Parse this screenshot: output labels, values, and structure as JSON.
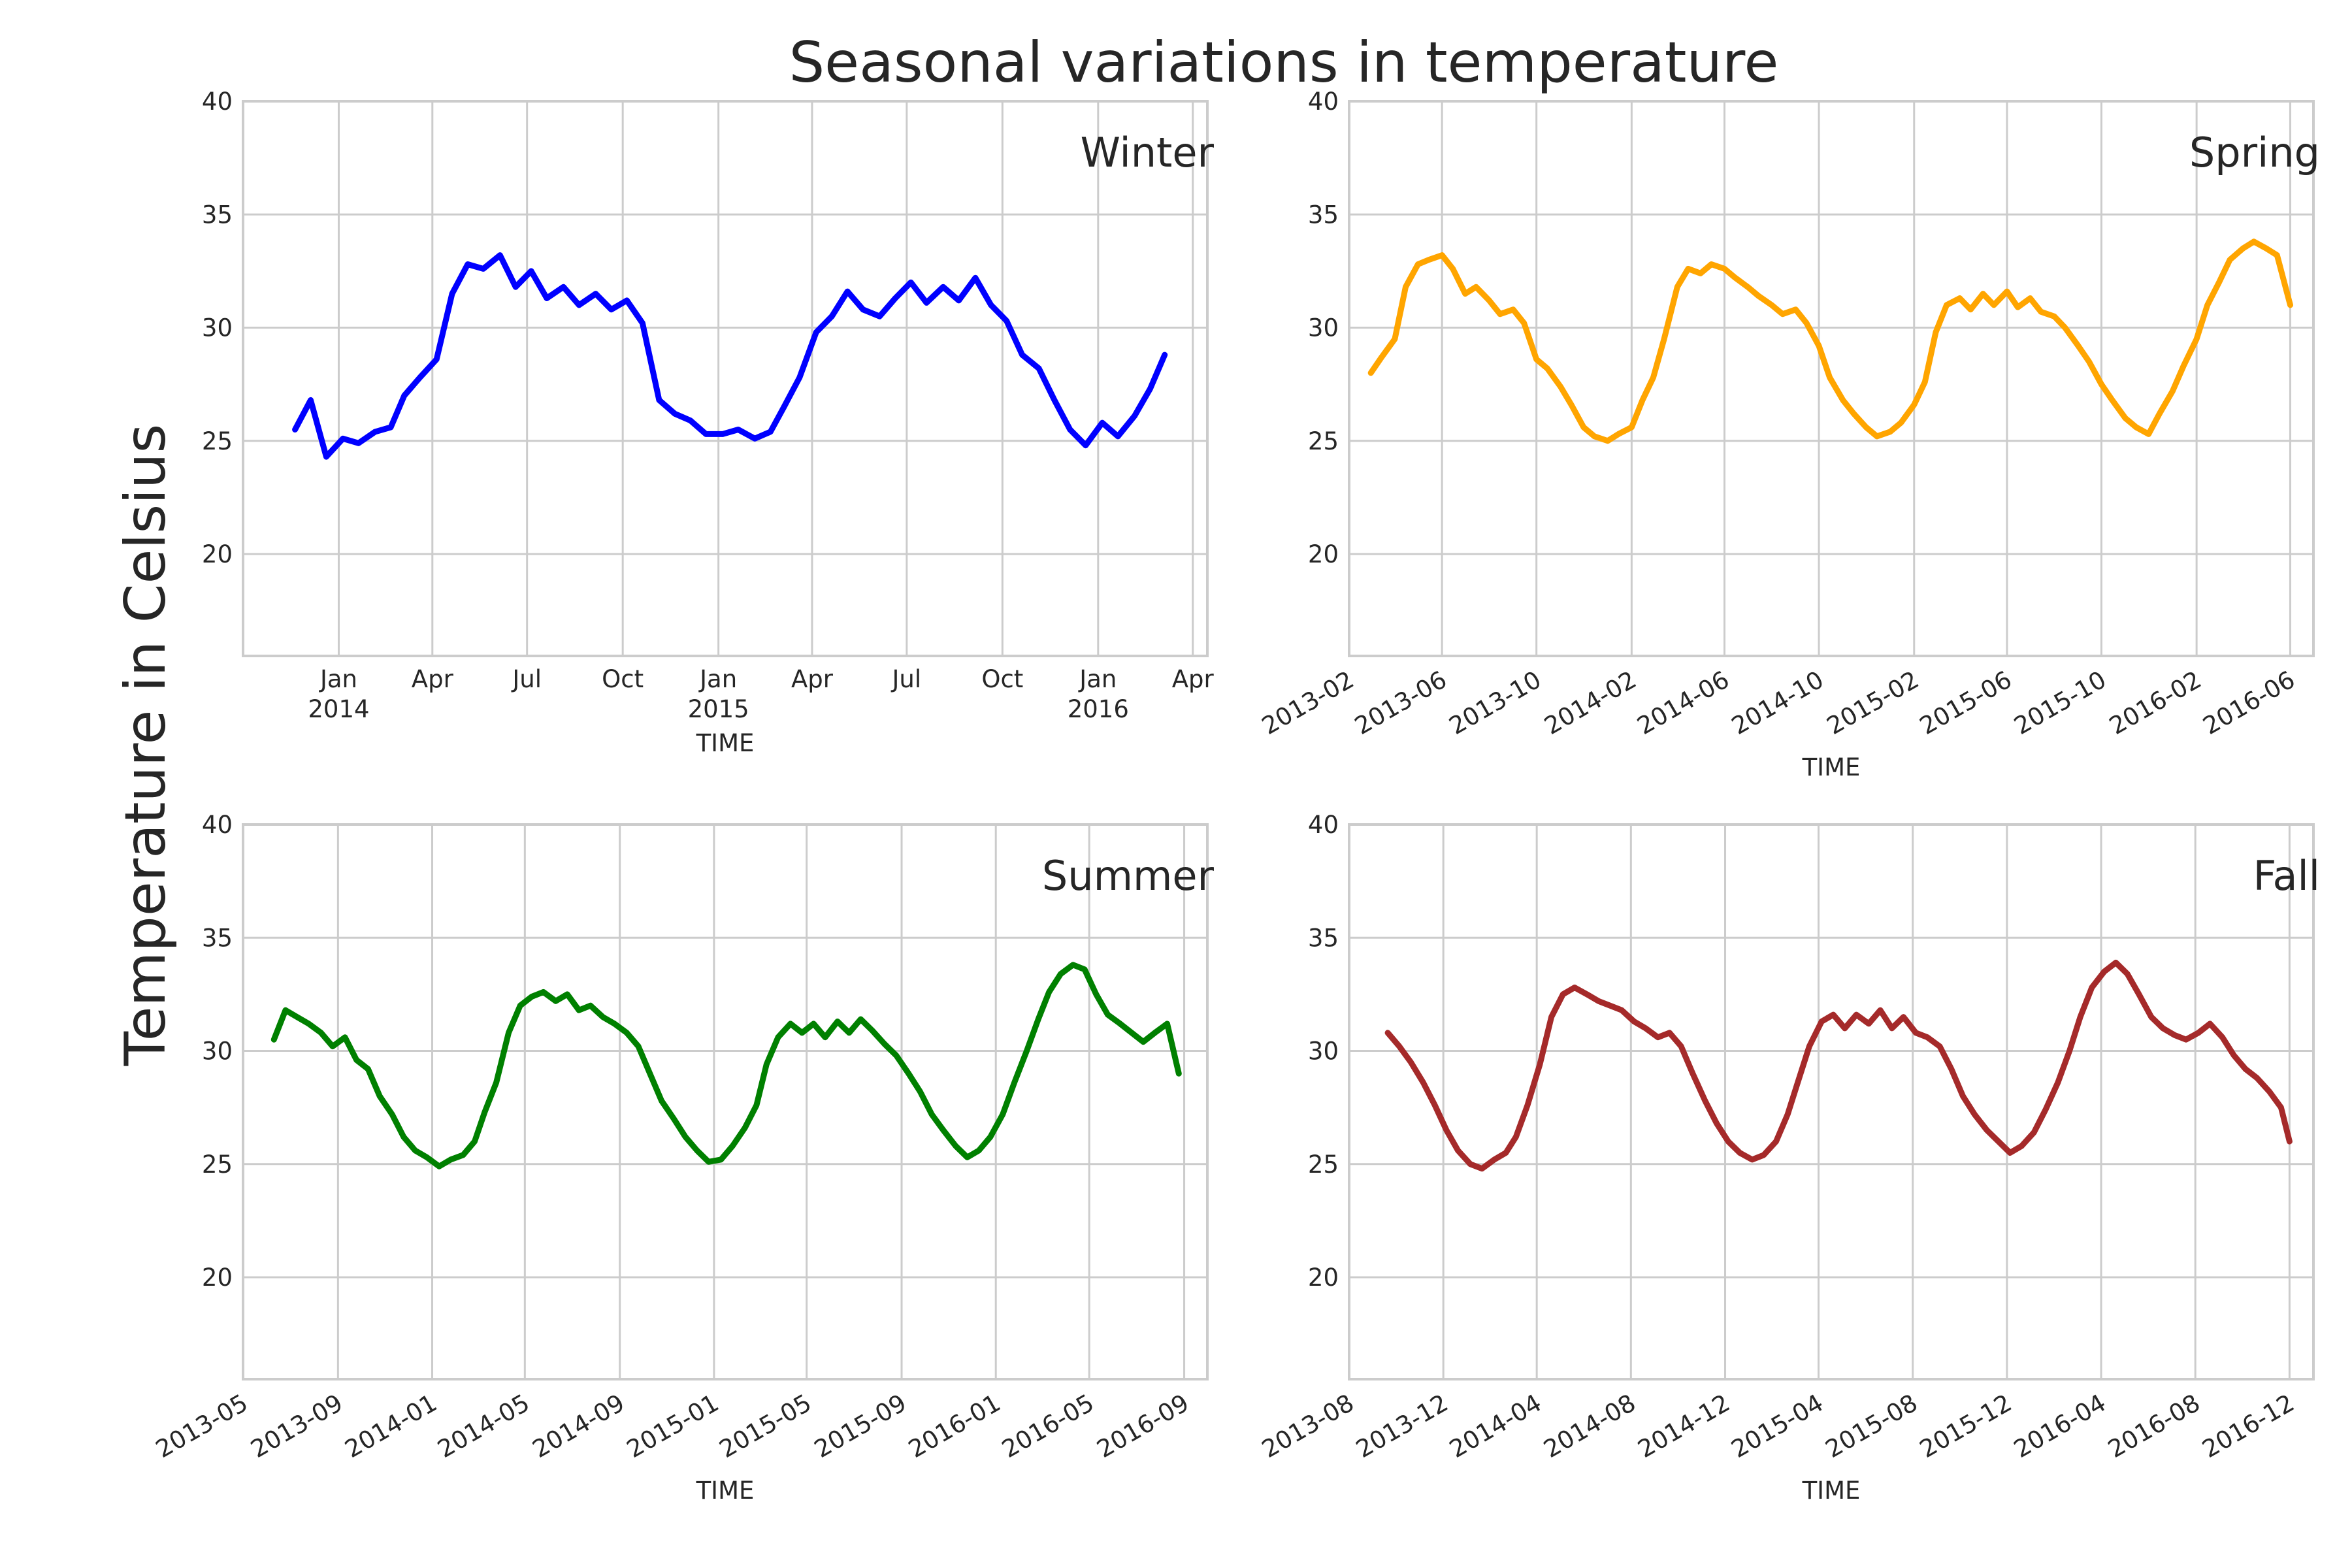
{
  "figure": {
    "title": "Seasonal variations in temperature",
    "ylabel": "Temperature in Celsius"
  },
  "chart_data": [
    {
      "type": "line",
      "panel": "top-left",
      "annotation": "Winter",
      "xlabel": "TIME",
      "ylabel": "",
      "ylim": [
        15.5,
        40
      ],
      "xlim": [
        "2013-10-01",
        "2016-04-15"
      ],
      "yticks": [
        20,
        25,
        30,
        35,
        40
      ],
      "xticks": [
        {
          "date": "2014-01-01",
          "label": "Jan",
          "label2": "2014"
        },
        {
          "date": "2014-04-01",
          "label": "Apr",
          "label2": ""
        },
        {
          "date": "2014-07-01",
          "label": "Jul",
          "label2": ""
        },
        {
          "date": "2014-10-01",
          "label": "Oct",
          "label2": ""
        },
        {
          "date": "2015-01-01",
          "label": "Jan",
          "label2": "2015"
        },
        {
          "date": "2015-04-01",
          "label": "Apr",
          "label2": ""
        },
        {
          "date": "2015-07-01",
          "label": "Jul",
          "label2": ""
        },
        {
          "date": "2015-10-01",
          "label": "Oct",
          "label2": ""
        },
        {
          "date": "2016-01-01",
          "label": "Jan",
          "label2": "2016"
        },
        {
          "date": "2016-04-01",
          "label": "Apr",
          "label2": ""
        }
      ],
      "rotate_ticks": false,
      "grid": true,
      "color": "#0000ff",
      "series": [
        {
          "x": [
            "2013-11-20",
            "2013-12-05",
            "2013-12-20",
            "2014-01-05",
            "2014-01-20",
            "2014-02-05",
            "2014-02-20",
            "2014-03-05",
            "2014-03-20",
            "2014-04-05",
            "2014-04-20",
            "2014-05-05",
            "2014-05-20",
            "2014-06-05",
            "2014-06-20",
            "2014-07-05",
            "2014-07-20",
            "2014-08-05",
            "2014-08-20",
            "2014-09-05",
            "2014-09-20",
            "2014-10-05",
            "2014-10-20",
            "2014-11-05",
            "2014-11-20",
            "2014-12-05",
            "2014-12-20",
            "2015-01-05",
            "2015-01-20",
            "2015-02-05",
            "2015-02-20",
            "2015-03-05",
            "2015-03-20",
            "2015-04-05",
            "2015-04-20",
            "2015-05-05",
            "2015-05-20",
            "2015-06-05",
            "2015-06-20",
            "2015-07-05",
            "2015-07-20",
            "2015-08-05",
            "2015-08-20",
            "2015-09-05",
            "2015-09-20",
            "2015-10-05",
            "2015-10-20",
            "2015-11-05",
            "2015-11-20",
            "2015-12-05",
            "2015-12-20",
            "2016-01-05",
            "2016-01-20",
            "2016-02-05",
            "2016-02-20",
            "2016-03-05"
          ],
          "y": [
            25.5,
            26.8,
            24.3,
            25.1,
            24.9,
            25.4,
            25.6,
            27.0,
            27.8,
            28.6,
            31.5,
            32.8,
            32.6,
            33.2,
            31.8,
            32.5,
            31.3,
            31.8,
            31.0,
            31.5,
            30.8,
            31.2,
            30.2,
            26.8,
            26.2,
            25.9,
            25.3,
            25.3,
            25.5,
            25.1,
            25.4,
            26.5,
            27.8,
            29.8,
            30.5,
            31.6,
            30.8,
            30.5,
            31.3,
            32.0,
            31.1,
            31.8,
            31.2,
            32.2,
            31.0,
            30.3,
            28.8,
            28.2,
            26.8,
            25.5,
            24.8,
            25.8,
            25.2,
            26.1,
            27.3,
            28.8
          ]
        }
      ]
    },
    {
      "type": "line",
      "panel": "top-right",
      "annotation": "Spring",
      "xlabel": "TIME",
      "ylabel": "",
      "ylim": [
        15.5,
        40
      ],
      "xlim": [
        "2013-02-01",
        "2016-07-01"
      ],
      "yticks": [
        20,
        25,
        30,
        35,
        40
      ],
      "xticks": [
        {
          "date": "2013-02-01",
          "label": "2013-02"
        },
        {
          "date": "2013-06-01",
          "label": "2013-06"
        },
        {
          "date": "2013-10-01",
          "label": "2013-10"
        },
        {
          "date": "2014-02-01",
          "label": "2014-02"
        },
        {
          "date": "2014-06-01",
          "label": "2014-06"
        },
        {
          "date": "2014-10-01",
          "label": "2014-10"
        },
        {
          "date": "2015-02-01",
          "label": "2015-02"
        },
        {
          "date": "2015-06-01",
          "label": "2015-06"
        },
        {
          "date": "2015-10-01",
          "label": "2015-10"
        },
        {
          "date": "2016-02-01",
          "label": "2016-02"
        },
        {
          "date": "2016-06-01",
          "label": "2016-06"
        }
      ],
      "rotate_ticks": true,
      "grid": true,
      "color": "#ffa500",
      "series": [
        {
          "x": [
            "2013-03-01",
            "2013-03-15",
            "2013-04-01",
            "2013-04-15",
            "2013-05-01",
            "2013-05-15",
            "2013-06-01",
            "2013-06-15",
            "2013-07-01",
            "2013-07-15",
            "2013-08-01",
            "2013-08-15",
            "2013-09-01",
            "2013-09-15",
            "2013-10-01",
            "2013-10-15",
            "2013-11-01",
            "2013-11-15",
            "2013-12-01",
            "2013-12-15",
            "2014-01-01",
            "2014-01-15",
            "2014-02-01",
            "2014-02-15",
            "2014-03-01",
            "2014-03-15",
            "2014-04-01",
            "2014-04-15",
            "2014-05-01",
            "2014-05-15",
            "2014-06-01",
            "2014-06-15",
            "2014-07-01",
            "2014-07-15",
            "2014-08-01",
            "2014-08-15",
            "2014-09-01",
            "2014-09-15",
            "2014-10-01",
            "2014-10-15",
            "2014-11-01",
            "2014-11-15",
            "2014-12-01",
            "2014-12-15",
            "2015-01-01",
            "2015-01-15",
            "2015-02-01",
            "2015-02-15",
            "2015-03-01",
            "2015-03-15",
            "2015-04-01",
            "2015-04-15",
            "2015-05-01",
            "2015-05-15",
            "2015-06-01",
            "2015-06-15",
            "2015-07-01",
            "2015-07-15",
            "2015-08-01",
            "2015-08-15",
            "2015-09-01",
            "2015-09-15",
            "2015-10-01",
            "2015-10-15",
            "2015-11-01",
            "2015-11-15",
            "2015-12-01",
            "2015-12-15",
            "2016-01-01",
            "2016-01-15",
            "2016-02-01",
            "2016-02-15",
            "2016-03-01",
            "2016-03-15",
            "2016-04-01",
            "2016-04-15",
            "2016-05-01",
            "2016-05-15",
            "2016-06-01"
          ],
          "y": [
            28.0,
            28.7,
            29.5,
            31.8,
            32.8,
            33.0,
            33.2,
            32.6,
            31.5,
            31.8,
            31.2,
            30.6,
            30.8,
            30.2,
            28.6,
            28.2,
            27.4,
            26.6,
            25.6,
            25.2,
            25.0,
            25.3,
            25.6,
            26.8,
            27.8,
            29.5,
            31.8,
            32.6,
            32.4,
            32.8,
            32.6,
            32.2,
            31.8,
            31.4,
            31.0,
            30.6,
            30.8,
            30.2,
            29.2,
            27.8,
            26.8,
            26.2,
            25.6,
            25.2,
            25.4,
            25.8,
            26.6,
            27.6,
            29.8,
            31.0,
            31.3,
            30.8,
            31.5,
            31.0,
            31.6,
            30.9,
            31.3,
            30.7,
            30.5,
            30.0,
            29.2,
            28.5,
            27.5,
            26.8,
            26.0,
            25.6,
            25.3,
            26.2,
            27.2,
            28.3,
            29.5,
            31.0,
            32.0,
            33.0,
            33.5,
            33.8,
            33.5,
            33.2,
            31.0
          ]
        }
      ]
    },
    {
      "type": "line",
      "panel": "bottom-left",
      "annotation": "Summer",
      "xlabel": "TIME",
      "ylabel": "",
      "ylim": [
        15.5,
        40
      ],
      "xlim": [
        "2013-05-01",
        "2016-10-01"
      ],
      "yticks": [
        20,
        25,
        30,
        35,
        40
      ],
      "xticks": [
        {
          "date": "2013-05-01",
          "label": "2013-05"
        },
        {
          "date": "2013-09-01",
          "label": "2013-09"
        },
        {
          "date": "2014-01-01",
          "label": "2014-01"
        },
        {
          "date": "2014-05-01",
          "label": "2014-05"
        },
        {
          "date": "2014-09-01",
          "label": "2014-09"
        },
        {
          "date": "2015-01-01",
          "label": "2015-01"
        },
        {
          "date": "2015-05-01",
          "label": "2015-05"
        },
        {
          "date": "2015-09-01",
          "label": "2015-09"
        },
        {
          "date": "2016-01-01",
          "label": "2016-01"
        },
        {
          "date": "2016-05-01",
          "label": "2016-05"
        },
        {
          "date": "2016-09-01",
          "label": "2016-09"
        }
      ],
      "rotate_ticks": true,
      "grid": true,
      "color": "#008000",
      "series": [
        {
          "x": [
            "2013-06-10",
            "2013-06-25",
            "2013-07-10",
            "2013-07-25",
            "2013-08-10",
            "2013-08-25",
            "2013-09-10",
            "2013-09-25",
            "2013-10-10",
            "2013-10-25",
            "2013-11-10",
            "2013-11-25",
            "2013-12-10",
            "2013-12-25",
            "2014-01-10",
            "2014-01-25",
            "2014-02-10",
            "2014-02-25",
            "2014-03-10",
            "2014-03-25",
            "2014-04-10",
            "2014-04-25",
            "2014-05-10",
            "2014-05-25",
            "2014-06-10",
            "2014-06-25",
            "2014-07-10",
            "2014-07-25",
            "2014-08-10",
            "2014-08-25",
            "2014-09-10",
            "2014-09-25",
            "2014-10-10",
            "2014-10-25",
            "2014-11-10",
            "2014-11-25",
            "2014-12-10",
            "2014-12-25",
            "2015-01-10",
            "2015-01-25",
            "2015-02-10",
            "2015-02-25",
            "2015-03-10",
            "2015-03-25",
            "2015-04-10",
            "2015-04-25",
            "2015-05-10",
            "2015-05-25",
            "2015-06-10",
            "2015-06-25",
            "2015-07-10",
            "2015-07-25",
            "2015-08-10",
            "2015-08-25",
            "2015-09-10",
            "2015-09-25",
            "2015-10-10",
            "2015-10-25",
            "2015-11-10",
            "2015-11-25",
            "2015-12-10",
            "2015-12-25",
            "2016-01-10",
            "2016-01-25",
            "2016-02-10",
            "2016-02-25",
            "2016-03-10",
            "2016-03-25",
            "2016-04-10",
            "2016-04-25",
            "2016-05-10",
            "2016-05-25",
            "2016-06-10",
            "2016-06-25",
            "2016-07-10",
            "2016-07-25",
            "2016-08-10",
            "2016-08-25"
          ],
          "y": [
            30.5,
            31.8,
            31.5,
            31.2,
            30.8,
            30.2,
            30.6,
            29.6,
            29.2,
            28.0,
            27.2,
            26.2,
            25.6,
            25.3,
            24.9,
            25.2,
            25.4,
            26.0,
            27.3,
            28.6,
            30.8,
            32.0,
            32.4,
            32.6,
            32.2,
            32.5,
            31.8,
            32.0,
            31.5,
            31.2,
            30.8,
            30.2,
            29.0,
            27.8,
            27.0,
            26.2,
            25.6,
            25.1,
            25.2,
            25.8,
            26.6,
            27.6,
            29.4,
            30.6,
            31.2,
            30.8,
            31.2,
            30.6,
            31.3,
            30.8,
            31.4,
            30.9,
            30.3,
            29.8,
            29.0,
            28.2,
            27.2,
            26.5,
            25.8,
            25.3,
            25.6,
            26.2,
            27.2,
            28.6,
            30.0,
            31.4,
            32.6,
            33.4,
            33.8,
            33.6,
            32.5,
            31.6,
            31.2,
            30.8,
            30.4,
            30.8,
            31.2,
            29.0
          ]
        }
      ]
    },
    {
      "type": "line",
      "panel": "bottom-right",
      "annotation": "Fall",
      "xlabel": "TIME",
      "ylabel": "",
      "ylim": [
        15.5,
        40
      ],
      "xlim": [
        "2013-08-01",
        "2017-01-01"
      ],
      "yticks": [
        20,
        25,
        30,
        35,
        40
      ],
      "xticks": [
        {
          "date": "2013-08-01",
          "label": "2013-08"
        },
        {
          "date": "2013-12-01",
          "label": "2013-12"
        },
        {
          "date": "2014-04-01",
          "label": "2014-04"
        },
        {
          "date": "2014-08-01",
          "label": "2014-08"
        },
        {
          "date": "2014-12-01",
          "label": "2014-12"
        },
        {
          "date": "2015-04-01",
          "label": "2015-04"
        },
        {
          "date": "2015-08-01",
          "label": "2015-08"
        },
        {
          "date": "2015-12-01",
          "label": "2015-12"
        },
        {
          "date": "2016-04-01",
          "label": "2016-04"
        },
        {
          "date": "2016-08-01",
          "label": "2016-08"
        },
        {
          "date": "2016-12-01",
          "label": "2016-12"
        }
      ],
      "rotate_ticks": true,
      "grid": true,
      "color": "#a52a2a",
      "series": [
        {
          "x": [
            "2013-09-20",
            "2013-10-05",
            "2013-10-20",
            "2013-11-05",
            "2013-11-20",
            "2013-12-05",
            "2013-12-20",
            "2014-01-05",
            "2014-01-20",
            "2014-02-05",
            "2014-02-20",
            "2014-03-05",
            "2014-03-20",
            "2014-04-05",
            "2014-04-20",
            "2014-05-05",
            "2014-05-20",
            "2014-06-05",
            "2014-06-20",
            "2014-07-05",
            "2014-07-20",
            "2014-08-05",
            "2014-08-20",
            "2014-09-05",
            "2014-09-20",
            "2014-10-05",
            "2014-10-20",
            "2014-11-05",
            "2014-11-20",
            "2014-12-05",
            "2014-12-20",
            "2015-01-05",
            "2015-01-20",
            "2015-02-05",
            "2015-02-20",
            "2015-03-05",
            "2015-03-20",
            "2015-04-05",
            "2015-04-20",
            "2015-05-05",
            "2015-05-20",
            "2015-06-05",
            "2015-06-20",
            "2015-07-05",
            "2015-07-20",
            "2015-08-05",
            "2015-08-20",
            "2015-09-05",
            "2015-09-20",
            "2015-10-05",
            "2015-10-20",
            "2015-11-05",
            "2015-11-20",
            "2015-12-05",
            "2015-12-20",
            "2016-01-05",
            "2016-01-20",
            "2016-02-05",
            "2016-02-20",
            "2016-03-05",
            "2016-03-20",
            "2016-04-05",
            "2016-04-20",
            "2016-05-05",
            "2016-05-20",
            "2016-06-05",
            "2016-06-20",
            "2016-07-05",
            "2016-07-20",
            "2016-08-05",
            "2016-08-20",
            "2016-09-05",
            "2016-09-20",
            "2016-10-05",
            "2016-10-20",
            "2016-11-05",
            "2016-11-20",
            "2016-12-01"
          ],
          "y": [
            30.8,
            30.2,
            29.5,
            28.6,
            27.6,
            26.5,
            25.6,
            25.0,
            24.8,
            25.2,
            25.5,
            26.2,
            27.6,
            29.4,
            31.5,
            32.5,
            32.8,
            32.5,
            32.2,
            32.0,
            31.8,
            31.3,
            31.0,
            30.6,
            30.8,
            30.2,
            29.0,
            27.8,
            26.8,
            26.0,
            25.5,
            25.2,
            25.4,
            26.0,
            27.2,
            28.6,
            30.2,
            31.3,
            31.6,
            31.0,
            31.6,
            31.2,
            31.8,
            31.0,
            31.5,
            30.8,
            30.6,
            30.2,
            29.2,
            28.0,
            27.2,
            26.5,
            26.0,
            25.5,
            25.8,
            26.4,
            27.4,
            28.6,
            30.0,
            31.5,
            32.8,
            33.5,
            33.9,
            33.4,
            32.5,
            31.5,
            31.0,
            30.7,
            30.5,
            30.8,
            31.2,
            30.6,
            29.8,
            29.2,
            28.8,
            28.2,
            27.5,
            26.0
          ]
        }
      ]
    }
  ]
}
